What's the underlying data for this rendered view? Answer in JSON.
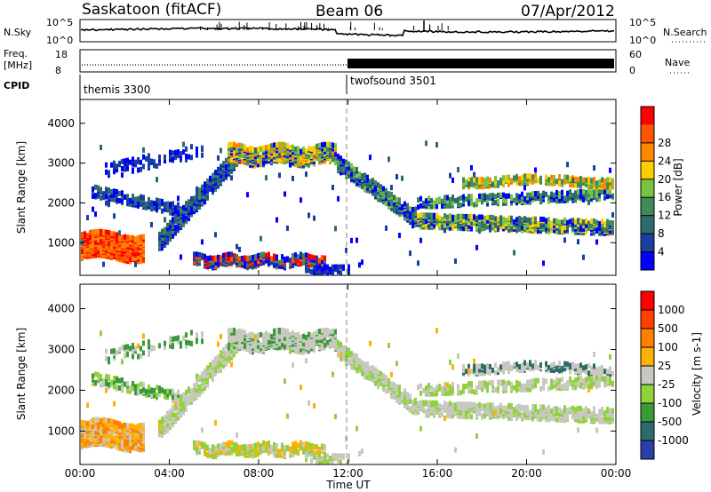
{
  "header": {
    "station": "Saskatoon (fitACF)",
    "beam": "Beam 06",
    "date": "07/Apr/2012"
  },
  "noise_panel": {
    "left_label": "N.Sky",
    "right_label": "N.Search",
    "left_ticks": [
      "10^5",
      "10^0"
    ],
    "right_ticks": [
      "10^5",
      "10^0"
    ]
  },
  "freq_panel": {
    "left_label_line1": "Freq.",
    "left_label_line2": "[MHz]",
    "left_ticks": [
      "18",
      "8"
    ],
    "right_label": "Nave",
    "right_ticks": [
      "60",
      "0"
    ]
  },
  "cpid_panel": {
    "label": "CPID",
    "programs": [
      {
        "name": "themis 3300",
        "start_hour": 0
      },
      {
        "name": "twofsound 3501",
        "start_hour": 12
      }
    ]
  },
  "x_axis": {
    "label": "Time UT",
    "ticks": [
      "00:00",
      "04:00",
      "08:00",
      "12:00",
      "16:00",
      "20:00",
      "00:00"
    ],
    "range_hours": [
      0,
      24
    ]
  },
  "colors": {
    "power": [
      "#0000ff",
      "#1a3fa0",
      "#2e6b6b",
      "#4a9a4a",
      "#8fcc33",
      "#ffcc00",
      "#ff9900",
      "#ff5500",
      "#ff0000"
    ],
    "velocity": [
      "#2b3fa8",
      "#2e6b6b",
      "#3a9a3a",
      "#88cc33",
      "#c8c8c0",
      "#ffaa00",
      "#ff7700",
      "#ff3300",
      "#ff0000"
    ],
    "power_levels": [
      "#0000ff",
      "#1a3fa0",
      "#2e6b6b",
      "#3d8a5a",
      "#7cc242",
      "#ffcc00",
      "#ff8800",
      "#ff5500",
      "#ff0000"
    ],
    "velocity_levels": [
      "#2b3fa8",
      "#2e6b6b",
      "#3a9a3a",
      "#8fd23a",
      "#c8c8c0",
      "#ffb000",
      "#ff8000",
      "#ff4000",
      "#ff0000"
    ]
  },
  "chart_data": [
    {
      "type": "heatmap",
      "name": "power",
      "ylabel": "Slant Range [km]",
      "ylim": [
        180,
        4600
      ],
      "yticks": [
        "1000",
        "2000",
        "3000",
        "4000"
      ],
      "colorbar_label": "Power [dB]",
      "colorbar_ticks": [
        "4",
        "8",
        "12",
        "16",
        "20",
        "24",
        "28"
      ],
      "clim": [
        0,
        30
      ]
    },
    {
      "type": "heatmap",
      "name": "velocity",
      "ylabel": "Slant Range [km]",
      "ylim": [
        180,
        4600
      ],
      "yticks": [
        "1000",
        "2000",
        "3000",
        "4000"
      ],
      "colorbar_label": "Velocity [m s-1]",
      "colorbar_ticks": [
        "1000",
        "500",
        "100",
        "25",
        "-25",
        "-100",
        "-500",
        "-1000"
      ]
    }
  ]
}
